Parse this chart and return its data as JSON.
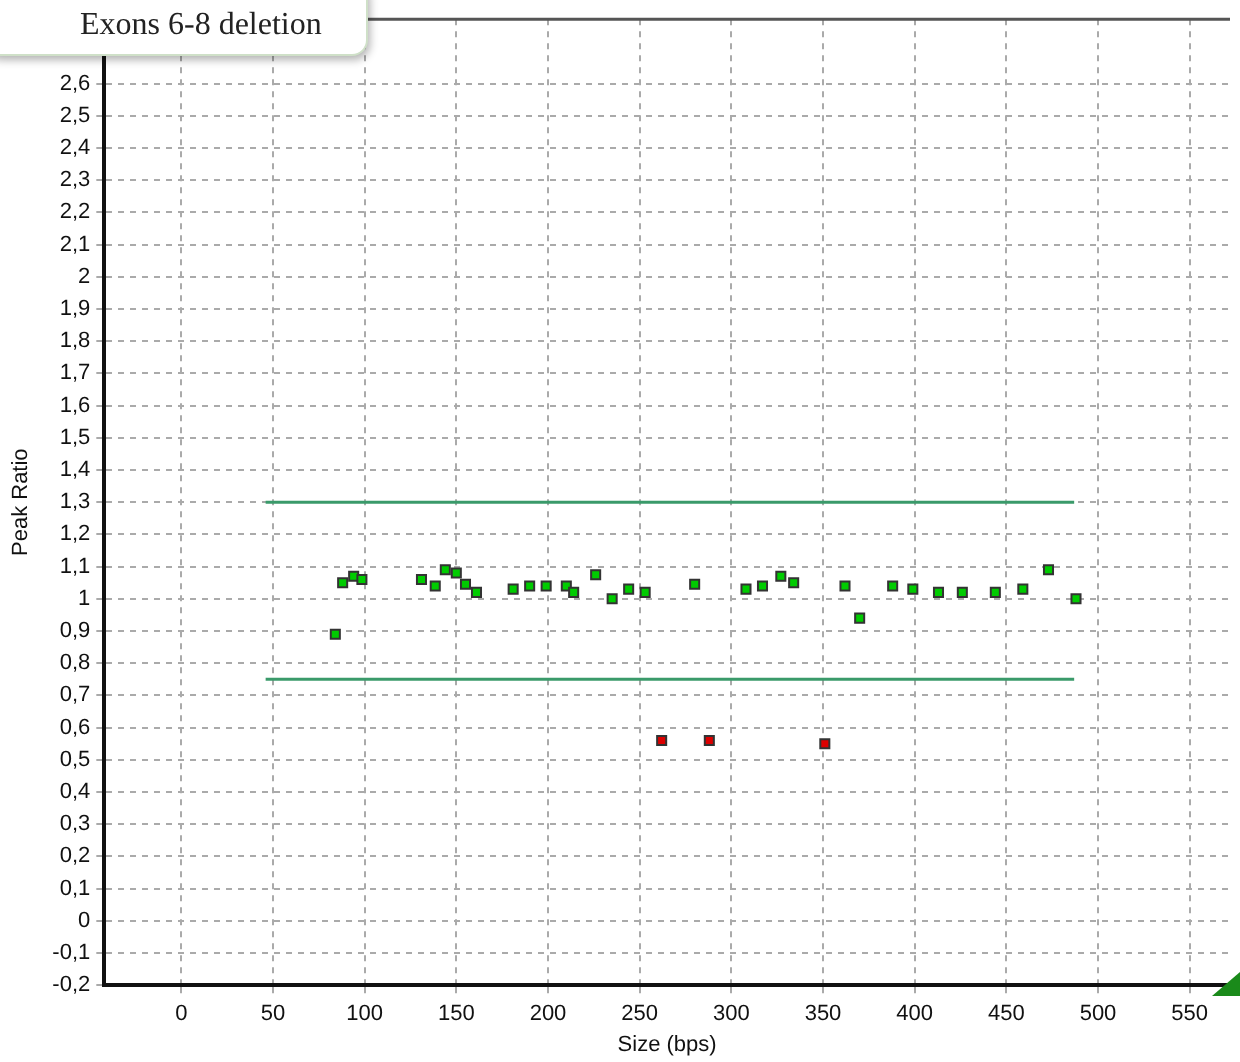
{
  "chart_data": {
    "type": "scatter",
    "title": "Exons 6-8 deletion",
    "xlabel": "Size (bps)",
    "ylabel": "Peak Ratio",
    "xlim": [
      -42,
      572
    ],
    "xticks": [
      0,
      50,
      100,
      150,
      200,
      250,
      300,
      350,
      400,
      450,
      500,
      550
    ],
    "ylim": [
      -0.2,
      2.8
    ],
    "yticks": [
      {
        "value": -0.2,
        "label": "-0,2"
      },
      {
        "value": -0.1,
        "label": "-0,1"
      },
      0,
      {
        "value": 0.1,
        "label": "0,1"
      },
      {
        "value": 0.2,
        "label": "0,2"
      },
      {
        "value": 0.3,
        "label": "0,3"
      },
      {
        "value": 0.4,
        "label": "0,4"
      },
      {
        "value": 0.5,
        "label": "0,5"
      },
      {
        "value": 0.6,
        "label": "0,6"
      },
      {
        "value": 0.7,
        "label": "0,7"
      },
      {
        "value": 0.8,
        "label": "0,8"
      },
      {
        "value": 0.9,
        "label": "0,9"
      },
      1,
      {
        "value": 1.1,
        "label": "1,1"
      },
      {
        "value": 1.2,
        "label": "1,2"
      },
      {
        "value": 1.3,
        "label": "1,3"
      },
      {
        "value": 1.4,
        "label": "1,4"
      },
      {
        "value": 1.5,
        "label": "1,5"
      },
      {
        "value": 1.6,
        "label": "1,6"
      },
      {
        "value": 1.7,
        "label": "1,7"
      },
      {
        "value": 1.8,
        "label": "1,8"
      },
      {
        "value": 1.9,
        "label": "1,9"
      },
      2,
      {
        "value": 2.1,
        "label": "2,1"
      },
      {
        "value": 2.2,
        "label": "2,2"
      },
      {
        "value": 2.3,
        "label": "2,3"
      },
      {
        "value": 2.4,
        "label": "2,4"
      },
      {
        "value": 2.5,
        "label": "2,5"
      },
      {
        "value": 2.6,
        "label": "2,6"
      }
    ],
    "grid": true,
    "legend": false,
    "series": [
      {
        "marker": "square",
        "color": "#00cc00",
        "x": [
          84,
          88,
          94,
          98.5,
          131,
          138.5,
          144,
          150,
          155,
          161,
          181,
          190,
          199,
          210,
          214,
          226,
          235,
          244,
          253,
          280,
          308,
          317,
          327,
          334,
          362,
          370,
          388,
          399,
          413,
          426,
          444,
          459,
          473,
          488
        ],
        "values": [
          0.89,
          1.05,
          1.07,
          1.06,
          1.06,
          1.04,
          1.09,
          1.08,
          1.045,
          1.02,
          1.03,
          1.04,
          1.04,
          1.04,
          1.02,
          1.075,
          1.0,
          1.03,
          1.02,
          1.045,
          1.03,
          1.04,
          1.07,
          1.05,
          1.04,
          0.94,
          1.04,
          1.03,
          1.02,
          1.02,
          1.02,
          1.03,
          1.09,
          1.0
        ]
      },
      {
        "marker": "square",
        "color": "#dd0000",
        "x": [
          262,
          288,
          351
        ],
        "values": [
          0.56,
          0.56,
          0.55
        ]
      },
      {
        "type": "line",
        "marker": "none",
        "color": "#3a9a6a",
        "x": [
          46,
          487
        ],
        "values": [
          1.3,
          1.3
        ]
      },
      {
        "type": "line",
        "marker": "none",
        "color": "#3a9a6a",
        "x": [
          46,
          487
        ],
        "values": [
          0.75,
          0.75
        ]
      }
    ]
  }
}
